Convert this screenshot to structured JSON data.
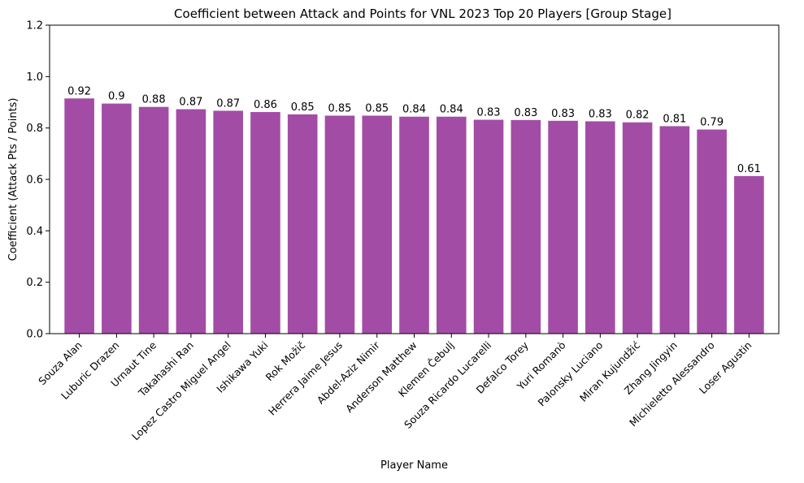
{
  "chart_data": {
    "type": "bar",
    "title": "Coefficient between Attack and Points for VNL 2023 Top 20 Players [Group Stage]",
    "xlabel": "Player Name",
    "ylabel": "Coefficient (Attack Pts / Points)",
    "ylim": [
      0,
      1.2
    ],
    "yticks": [
      "0.0",
      "0.2",
      "0.4",
      "0.6",
      "0.8",
      "1.0",
      "1.2"
    ],
    "bar_color": "#a34ca6",
    "grid": false,
    "categories": [
      "Souza Alan",
      "Luburic Drazen",
      "Urnaut Tine",
      "Takahashi Ran",
      "Lopez Castro Miguel Angel",
      "Ishikawa Yuki",
      "Rok Možič",
      "Herrera Jaime Jesus",
      "Abdel-Aziz Nimir",
      "Anderson Matthew",
      "Klemen Čebulj",
      "Souza Ricardo Lucarelli",
      "Defalco Torey",
      "Yuri Romanò",
      "Palonsky Luciano",
      "Miran Kujundžić",
      "Zhang Jingyin",
      "Michieletto Alessandro",
      "Loser Agustin"
    ],
    "values": [
      0.915,
      0.895,
      0.882,
      0.873,
      0.867,
      0.862,
      0.853,
      0.848,
      0.848,
      0.844,
      0.844,
      0.832,
      0.831,
      0.828,
      0.826,
      0.822,
      0.807,
      0.794,
      0.613
    ],
    "labels": [
      "0.92",
      "0.9",
      "0.88",
      "0.87",
      "0.87",
      "0.86",
      "0.85",
      "0.85",
      "0.85",
      "0.84",
      "0.84",
      "0.83",
      "0.83",
      "0.83",
      "0.83",
      "0.82",
      "0.81",
      "0.79",
      "0.61"
    ]
  }
}
